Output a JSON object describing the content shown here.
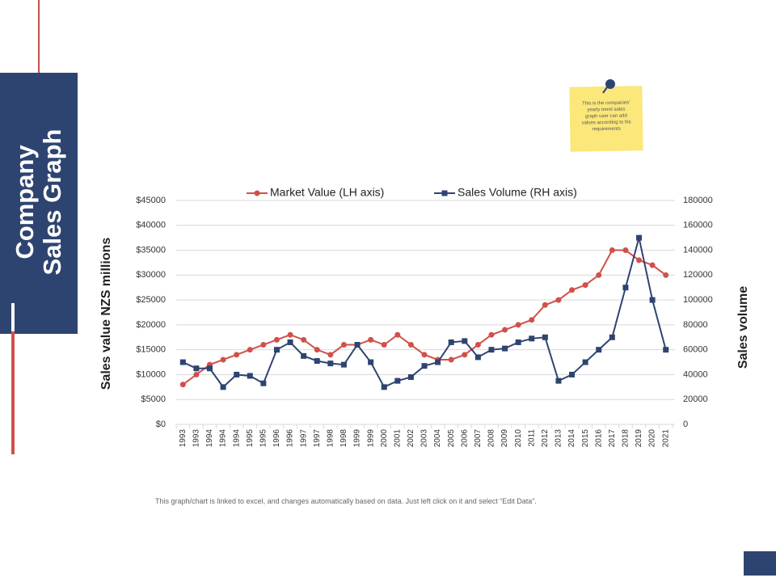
{
  "slide": {
    "title_lines": [
      "Company",
      "Sales Graph"
    ],
    "note": "This is the companies' yearly trend sales graph user can add values according to his requirements",
    "footer": "This graph/chart is linked to excel, and changes automatically based on data. Just left click on it and select “Edit Data”."
  },
  "chart_data": {
    "type": "line",
    "categories": [
      "1993",
      "1993",
      "1994",
      "1994",
      "1994",
      "1995",
      "1995",
      "1996",
      "1996",
      "1997",
      "1997",
      "1998",
      "1998",
      "1999",
      "1999",
      "2000",
      "2001",
      "2002",
      "2003",
      "2004",
      "2005",
      "2006",
      "2007",
      "2008",
      "2009",
      "2010",
      "2011",
      "2012",
      "2013",
      "2014",
      "2015",
      "2016",
      "2017",
      "2018",
      "2019",
      "2020",
      "2021"
    ],
    "series": [
      {
        "name": "Market Value (LH axis)",
        "color": "#d0504a",
        "marker": "circle",
        "values": [
          8000,
          10000,
          12000,
          13000,
          14000,
          15000,
          16000,
          17000,
          18000,
          17000,
          15000,
          14000,
          16000,
          16000,
          17000,
          16000,
          18000,
          16000,
          14000,
          13000,
          13000,
          14000,
          16000,
          18000,
          19000,
          20000,
          21000,
          24000,
          25000,
          27000,
          28000,
          30000,
          35000,
          35000,
          33000,
          32000,
          30000
        ]
      },
      {
        "name": "Sales Volume (RH axis)",
        "color": "#2e4470",
        "marker": "square",
        "axis": "y2",
        "values": [
          50000,
          45000,
          45000,
          30000,
          40000,
          39000,
          33000,
          60000,
          66000,
          55000,
          51000,
          49000,
          48000,
          64000,
          50000,
          30000,
          35000,
          38000,
          47000,
          50000,
          66000,
          67000,
          54000,
          60000,
          61000,
          66000,
          69000,
          70000,
          35000,
          40000,
          50000,
          60000,
          70000,
          110000,
          150000,
          100000,
          60000
        ]
      }
    ],
    "ylabel": "Sales value NZS millions",
    "y2label": "Sales  volume",
    "ylim": [
      0,
      45000
    ],
    "yticks": [
      {
        "value": 0,
        "label": "$0"
      },
      {
        "value": 5000,
        "label": "$5000"
      },
      {
        "value": 10000,
        "label": "$10000"
      },
      {
        "value": 15000,
        "label": "$15000"
      },
      {
        "value": 20000,
        "label": "$20000"
      },
      {
        "value": 25000,
        "label": "$25000"
      },
      {
        "value": 30000,
        "label": "$30000"
      },
      {
        "value": 35000,
        "label": "$35000"
      },
      {
        "value": 40000,
        "label": "$40000"
      },
      {
        "value": 45000,
        "label": "$45000"
      }
    ],
    "y2lim": [
      0,
      180000
    ],
    "y2ticks": [
      0,
      20000,
      40000,
      60000,
      80000,
      100000,
      120000,
      140000,
      160000,
      180000
    ],
    "grid": true,
    "legend": "top"
  }
}
